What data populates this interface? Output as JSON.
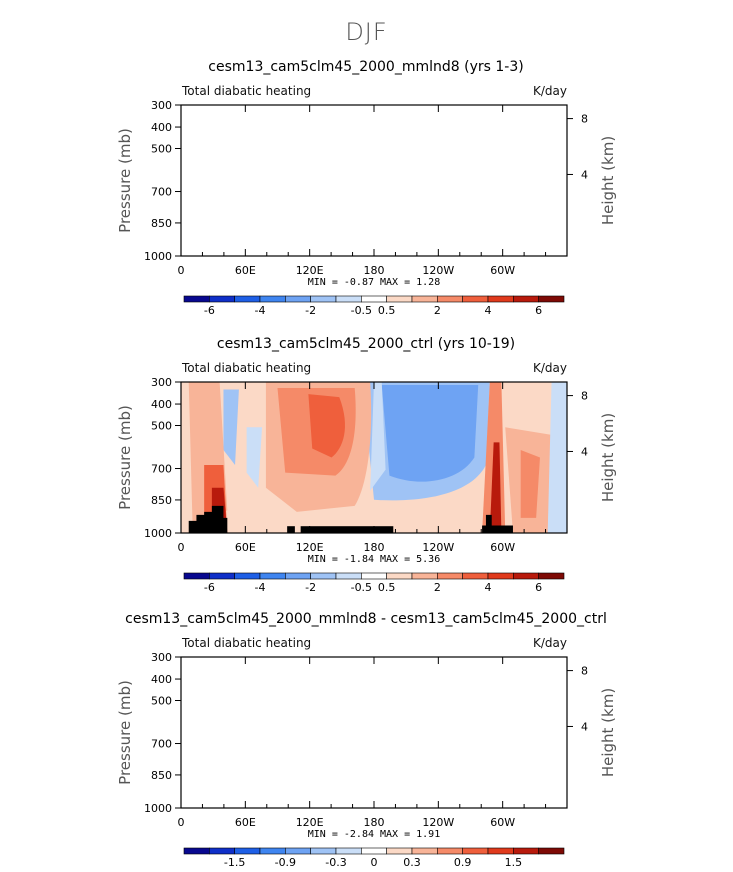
{
  "page_title": "DJF",
  "chart_data": [
    {
      "type": "heatmap",
      "title": "cesm13_cam5clm45_2000_mmlnd8 (yrs 1-3)",
      "left_label": "Total diabatic heating",
      "right_label": "K/day",
      "ylabel": "Pressure (mb)",
      "y2label": "Height (km)",
      "y_ticks": [
        "300",
        "400",
        "500",
        "700",
        "850",
        "1000"
      ],
      "y2_ticks": [
        "8",
        "4"
      ],
      "x_ticks": [
        "0",
        "60E",
        "120E",
        "180",
        "120W",
        "60W"
      ],
      "min": "-0.87",
      "max": "1.28",
      "stats_text": "MIN =   -0.87   MAX =    1.28",
      "colorbar_labels": [
        "-6",
        "-4",
        "-2",
        "-0.5",
        "0.5",
        "2",
        "4",
        "6"
      ],
      "values": "blank"
    },
    {
      "type": "heatmap",
      "title": "cesm13_cam5clm45_2000_ctrl (yrs 10-19)",
      "left_label": "Total diabatic heating",
      "right_label": "K/day",
      "ylabel": "Pressure (mb)",
      "y2label": "Height (km)",
      "y_ticks": [
        "300",
        "400",
        "500",
        "700",
        "850",
        "1000"
      ],
      "y2_ticks": [
        "8",
        "4"
      ],
      "x_ticks": [
        "0",
        "60E",
        "120E",
        "180",
        "120W",
        "60W"
      ],
      "min": "-1.84",
      "max": "5.36",
      "stats_text": "MIN =   -1.84   MAX =    5.36",
      "colorbar_labels": [
        "-6",
        "-4",
        "-2",
        "-0.5",
        "0.5",
        "2",
        "4",
        "6"
      ],
      "values": "filled contours"
    },
    {
      "type": "heatmap",
      "title": "cesm13_cam5clm45_2000_mmlnd8 - cesm13_cam5clm45_2000_ctrl",
      "left_label": "Total diabatic heating",
      "right_label": "K/day",
      "ylabel": "Pressure (mb)",
      "y2label": "Height (km)",
      "y_ticks": [
        "300",
        "400",
        "500",
        "700",
        "850",
        "1000"
      ],
      "y2_ticks": [
        "8",
        "4"
      ],
      "x_ticks": [
        "0",
        "60E",
        "120E",
        "180",
        "120W",
        "60W"
      ],
      "min": "-2.84",
      "max": "1.91",
      "stats_text": "MIN =   -2.84   MAX =    1.91",
      "colorbar_labels": [
        "-1.5",
        "-0.9",
        "-0.3",
        "0",
        "0.3",
        "0.9",
        "1.5"
      ],
      "values": "blank"
    }
  ],
  "colorbar_colors": [
    "#08088f",
    "#0f2fc8",
    "#1e5fe6",
    "#3f85f0",
    "#6ea3f3",
    "#9fc3f5",
    "#cadef7",
    "#ffffff",
    "#fbd9c6",
    "#f8b498",
    "#f58a68",
    "#ef5f3c",
    "#e03a1c",
    "#b81a0c",
    "#7e0a05"
  ],
  "colors": {
    "title": "#000000",
    "axis_label": "#555555",
    "terrain": "#000000"
  }
}
